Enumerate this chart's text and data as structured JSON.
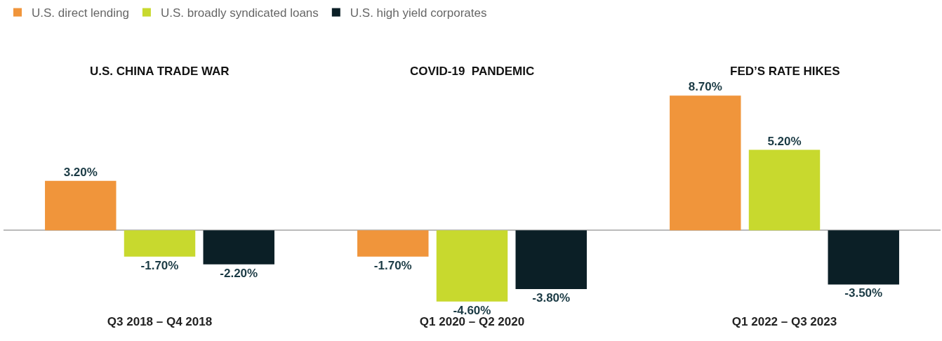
{
  "chart_data": {
    "type": "bar",
    "categories": [
      "Q3 2018 – Q4 2018",
      "Q1 2020 – Q2 2020",
      "Q1 2022 – Q3 2023"
    ],
    "series": [
      {
        "name": "U.S. direct lending",
        "color": "#f0953b",
        "values": [
          3.2,
          -1.7,
          8.7
        ],
        "value_labels": [
          "3.20%",
          "-1.70%",
          "8.70%"
        ]
      },
      {
        "name": "U.S. broadly syndicated loans",
        "color": "#c8d92e",
        "values": [
          -1.7,
          -4.6,
          5.2
        ],
        "value_labels": [
          "-1.70%",
          "-4.60%",
          "5.20%"
        ]
      },
      {
        "name": "U.S. high yield corporates",
        "color": "#0b1f26",
        "values": [
          -2.2,
          -3.8,
          -3.5
        ],
        "value_labels": [
          "-2.20%",
          "-3.80%",
          "-3.50%"
        ]
      }
    ],
    "annotations": [
      "U.S. CHINA TRADE WAR",
      "COVID-19  PANDEMIC",
      "FED’S RATE HIKES"
    ],
    "tick_labels": "x",
    "legend": "top left"
  }
}
